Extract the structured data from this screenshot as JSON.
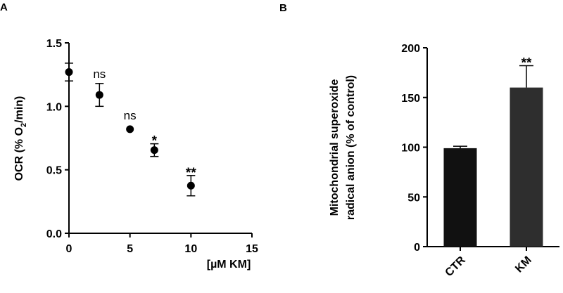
{
  "chart_data": [
    {
      "panel": "A",
      "type": "scatter",
      "xlabel": "[µM KM]",
      "ylabel_parts": [
        "OCR (% O",
        "2",
        "/min)"
      ],
      "xlim": [
        0,
        15
      ],
      "ylim": [
        0,
        1.5
      ],
      "x_ticks": [
        "0",
        "5",
        "10",
        "15"
      ],
      "y_ticks": [
        "0.0",
        "0.5",
        "1.0",
        "1.5"
      ],
      "grid": false,
      "points": [
        {
          "x": 0,
          "y": 1.27,
          "err": 0.07,
          "label": ""
        },
        {
          "x": 2.5,
          "y": 1.09,
          "err": 0.09,
          "label": "ns"
        },
        {
          "x": 5,
          "y": 0.82,
          "err": 0.01,
          "label": "ns"
        },
        {
          "x": 7,
          "y": 0.655,
          "err": 0.05,
          "label": "*"
        },
        {
          "x": 10,
          "y": 0.375,
          "err": 0.08,
          "label": "**"
        }
      ]
    },
    {
      "panel": "B",
      "type": "bar",
      "ylabel_lines": [
        "Mitochondrial superoxide",
        "radical anion (% of control)"
      ],
      "ylim": [
        0,
        200
      ],
      "y_ticks": [
        "0",
        "50",
        "100",
        "150",
        "200"
      ],
      "categories": [
        "CTR",
        "KM"
      ],
      "values": [
        99,
        160
      ],
      "errors": [
        2,
        22
      ],
      "labels": [
        "",
        "**"
      ],
      "colors": [
        "#111111",
        "#2e2e2e"
      ],
      "grid": false
    }
  ]
}
